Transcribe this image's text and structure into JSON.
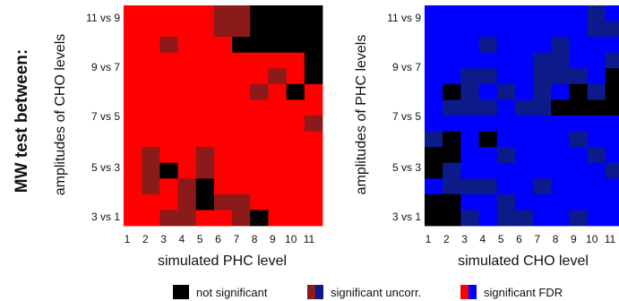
{
  "side_label": "MW test between:",
  "colors": {
    "not_significant": "#000000",
    "uncorr_red": "#8b1a1a",
    "fdr_red": "#ff0000",
    "uncorr_blue": "#0d1a8a",
    "fdr_blue": "#0000ff"
  },
  "legend": {
    "not_significant": "not significant",
    "significant_uncorr": "significant uncorr.",
    "significant_fdr": "significant FDR"
  },
  "chart_data": [
    {
      "type": "heatmap",
      "xlabel": "simulated PHC level",
      "ylabel": "amplitudes of CHO levels",
      "x_ticks": [
        "1",
        "2",
        "3",
        "4",
        "5",
        "6",
        "7",
        "8",
        "9",
        "10",
        "11"
      ],
      "y_ticks": [
        "11 vs 9",
        "9 vs 7",
        "7 vs 5",
        "5 vs 3",
        "3 vs 1"
      ],
      "legend_value_map": {
        "0": "not significant",
        "1": "significant uncorr.",
        "2": "significant FDR"
      },
      "cells": [
        [
          2,
          2,
          2,
          2,
          2,
          1,
          1,
          0,
          0,
          0,
          0
        ],
        [
          2,
          2,
          2,
          2,
          2,
          1,
          1,
          0,
          0,
          0,
          0
        ],
        [
          2,
          2,
          1,
          2,
          2,
          2,
          0,
          0,
          0,
          0,
          0
        ],
        [
          2,
          2,
          2,
          2,
          2,
          2,
          2,
          2,
          2,
          2,
          0
        ],
        [
          2,
          2,
          2,
          2,
          2,
          2,
          2,
          2,
          1,
          2,
          0
        ],
        [
          2,
          2,
          2,
          2,
          2,
          2,
          2,
          1,
          2,
          0,
          2
        ],
        [
          2,
          2,
          2,
          2,
          2,
          2,
          2,
          2,
          2,
          2,
          2
        ],
        [
          2,
          2,
          2,
          2,
          2,
          2,
          2,
          2,
          2,
          2,
          1
        ],
        [
          2,
          2,
          2,
          2,
          2,
          2,
          2,
          2,
          2,
          2,
          2
        ],
        [
          2,
          1,
          2,
          2,
          1,
          2,
          2,
          2,
          2,
          2,
          2
        ],
        [
          2,
          1,
          0,
          2,
          1,
          2,
          2,
          2,
          2,
          2,
          2
        ],
        [
          2,
          1,
          2,
          1,
          0,
          2,
          2,
          2,
          2,
          2,
          2
        ],
        [
          2,
          2,
          2,
          1,
          0,
          1,
          1,
          2,
          2,
          2,
          2
        ],
        [
          2,
          2,
          1,
          1,
          2,
          2,
          1,
          0,
          2,
          2,
          2
        ]
      ]
    },
    {
      "type": "heatmap",
      "xlabel": "simulated CHO level",
      "ylabel": "amplitudes of PHC levels",
      "x_ticks": [
        "1",
        "2",
        "3",
        "4",
        "5",
        "6",
        "7",
        "8",
        "9",
        "10",
        "11"
      ],
      "y_ticks": [
        "11 vs 9",
        "9 vs 7",
        "7 vs 5",
        "5 vs 3",
        "3 vs 1"
      ],
      "legend_value_map": {
        "0": "not significant",
        "1": "significant uncorr.",
        "2": "significant FDR"
      },
      "cells": [
        [
          2,
          2,
          2,
          2,
          2,
          2,
          2,
          2,
          2,
          1,
          2
        ],
        [
          2,
          2,
          2,
          2,
          2,
          2,
          2,
          2,
          2,
          1,
          1
        ],
        [
          2,
          2,
          2,
          1,
          2,
          2,
          2,
          1,
          2,
          2,
          2
        ],
        [
          2,
          2,
          2,
          2,
          2,
          2,
          1,
          1,
          2,
          2,
          1
        ],
        [
          2,
          2,
          1,
          1,
          2,
          2,
          1,
          1,
          1,
          2,
          0
        ],
        [
          2,
          0,
          1,
          2,
          1,
          2,
          1,
          2,
          0,
          1,
          0
        ],
        [
          2,
          1,
          1,
          1,
          2,
          1,
          1,
          0,
          0,
          0,
          0
        ],
        [
          2,
          2,
          2,
          2,
          2,
          2,
          2,
          2,
          2,
          2,
          2
        ],
        [
          1,
          0,
          2,
          0,
          2,
          2,
          2,
          2,
          1,
          2,
          2
        ],
        [
          0,
          0,
          2,
          2,
          1,
          2,
          2,
          2,
          2,
          1,
          2
        ],
        [
          0,
          1,
          2,
          2,
          2,
          2,
          2,
          2,
          2,
          2,
          1
        ],
        [
          2,
          1,
          1,
          1,
          2,
          2,
          1,
          2,
          2,
          2,
          2
        ],
        [
          0,
          0,
          2,
          2,
          1,
          2,
          2,
          2,
          2,
          2,
          2
        ],
        [
          0,
          0,
          1,
          2,
          1,
          1,
          2,
          2,
          1,
          2,
          2
        ]
      ]
    }
  ]
}
